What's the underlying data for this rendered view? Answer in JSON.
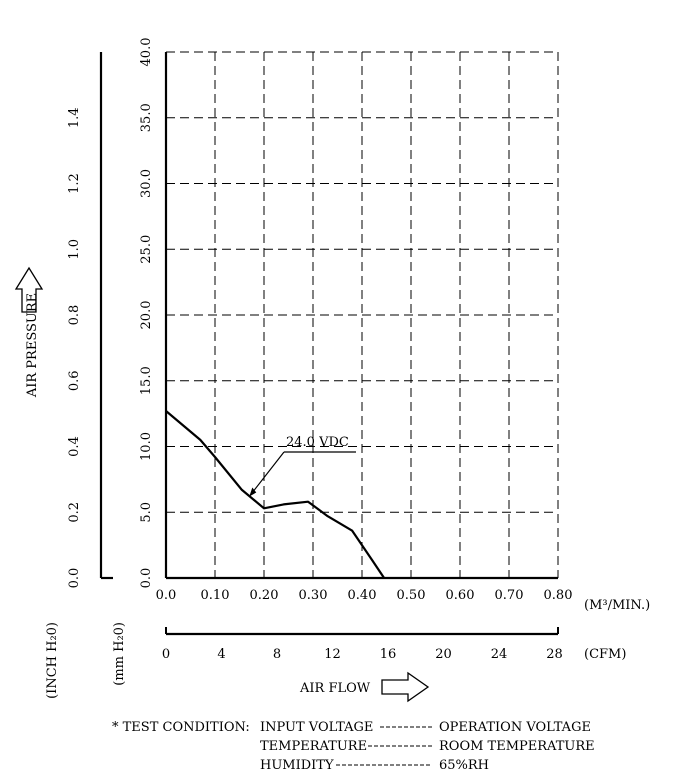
{
  "chart_data": {
    "type": "line",
    "x_label": "AIR FLOW",
    "x_unit_top": "(M³/MIN.)",
    "x_unit_bottom": "(CFM)",
    "y_label": "AIR PRESSURE",
    "y_unit_inch": "(INCH H₂0)",
    "y_unit_mm": "(mm H₂0)",
    "xlim": [
      0,
      0.8
    ],
    "ylim_mm": [
      0,
      40
    ],
    "ylim_inch": [
      0,
      1.6
    ],
    "x_ticks_m3": [
      "0.0",
      "0.10",
      "0.20",
      "0.30",
      "0.40",
      "0.50",
      "0.60",
      "0.70",
      "0.80"
    ],
    "x_ticks_cfm": [
      "0",
      "4",
      "8",
      "12",
      "16",
      "20",
      "24",
      "28"
    ],
    "y_ticks_mm": [
      "0.0",
      "5.0",
      "10.0",
      "15.0",
      "20.0",
      "25.0",
      "30.0",
      "35.0",
      "40.0"
    ],
    "y_ticks_inch": [
      "0.0",
      "0.2",
      "0.4",
      "0.6",
      "0.8",
      "1.0",
      "1.2",
      "1.4"
    ],
    "grid": true,
    "series": [
      {
        "name": "24.0 VDC",
        "x": [
          0.0,
          0.07,
          0.1,
          0.155,
          0.2,
          0.24,
          0.29,
          0.33,
          0.38,
          0.42,
          0.445
        ],
        "y": [
          12.7,
          10.5,
          9.2,
          6.7,
          5.3,
          5.6,
          5.8,
          4.7,
          3.6,
          1.4,
          0.0
        ]
      }
    ]
  },
  "test_condition": {
    "heading": "* TEST CONDITION:",
    "rows": [
      {
        "param": "INPUT VOLTAGE",
        "value": "OPERATION VOLTAGE"
      },
      {
        "param": "TEMPERATURE",
        "value": "ROOM TEMPERATURE"
      },
      {
        "param": "HUMIDITY",
        "value": "65%RH"
      }
    ]
  }
}
